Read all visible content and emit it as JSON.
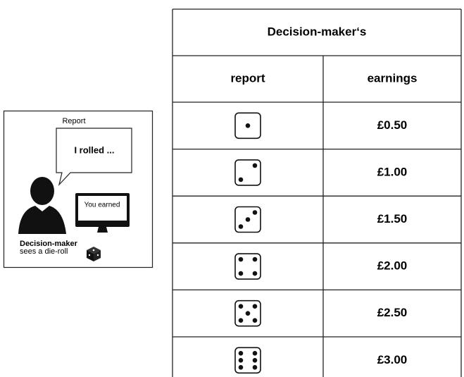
{
  "panel": {
    "report_label": "Report",
    "speech": "I rolled ...",
    "screen": "You earned",
    "role": "Decision-maker",
    "caption": "sees a die-roll"
  },
  "table": {
    "title": "Decision-maker‘s",
    "columns": [
      "report",
      "earnings"
    ],
    "rows": [
      {
        "report": 1,
        "earnings": "£0.50"
      },
      {
        "report": 2,
        "earnings": "£1.00"
      },
      {
        "report": 3,
        "earnings": "£1.50"
      },
      {
        "report": 4,
        "earnings": "£2.00"
      },
      {
        "report": 5,
        "earnings": "£2.50"
      },
      {
        "report": 6,
        "earnings": "£3.00"
      }
    ]
  }
}
